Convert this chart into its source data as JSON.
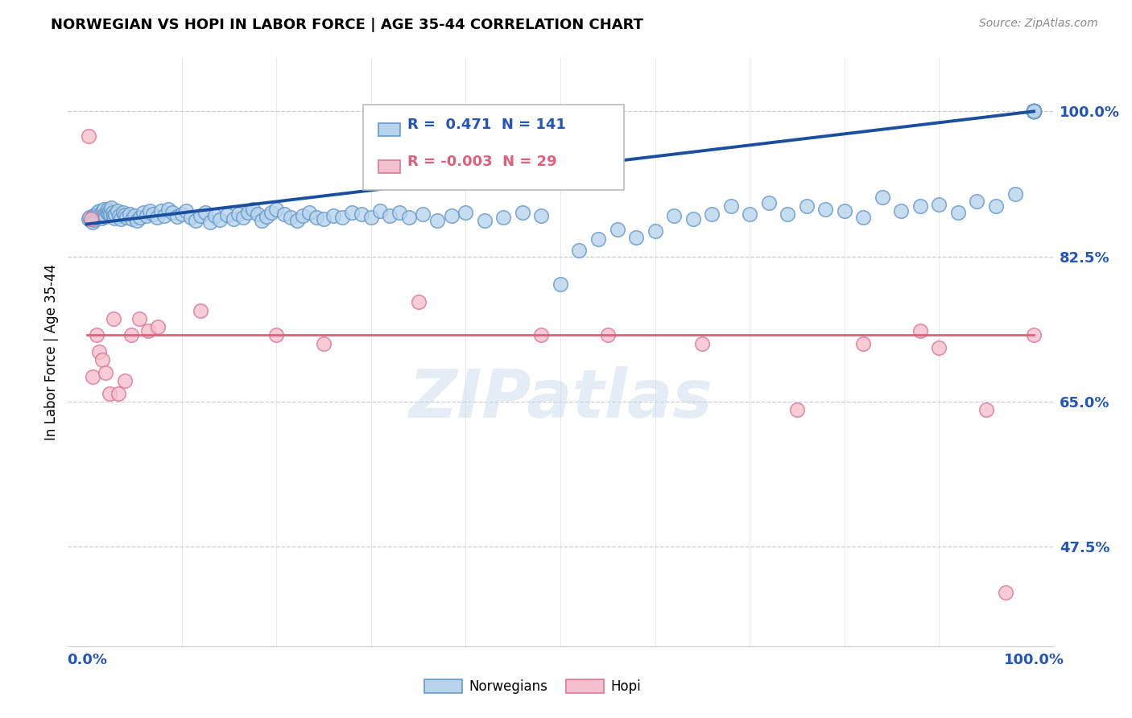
{
  "title": "NORWEGIAN VS HOPI IN LABOR FORCE | AGE 35-44 CORRELATION CHART",
  "source": "Source: ZipAtlas.com",
  "ylabel": "In Labor Force | Age 35-44",
  "watermark": "ZIPatlas",
  "xlim": [
    -0.02,
    1.02
  ],
  "ylim": [
    0.355,
    1.065
  ],
  "ytick_values": [
    0.475,
    0.65,
    0.825,
    1.0
  ],
  "norwegian_color": "#b8d4ec",
  "norwegian_edge": "#6699cc",
  "hopi_color": "#f5c0ce",
  "hopi_edge": "#dd7799",
  "trend_norwegian_color": "#1a4fa0",
  "trend_hopi_color": "#e0607a",
  "legend_R_norwegian": "0.471",
  "legend_N_norwegian": "141",
  "legend_R_hopi": "-0.003",
  "legend_N_hopi": "29",
  "norwegian_x": [
    0.002,
    0.003,
    0.004,
    0.005,
    0.006,
    0.007,
    0.008,
    0.009,
    0.01,
    0.011,
    0.012,
    0.013,
    0.014,
    0.015,
    0.016,
    0.017,
    0.018,
    0.019,
    0.02,
    0.021,
    0.022,
    0.023,
    0.024,
    0.025,
    0.026,
    0.027,
    0.028,
    0.029,
    0.03,
    0.032,
    0.034,
    0.036,
    0.038,
    0.04,
    0.042,
    0.045,
    0.048,
    0.05,
    0.053,
    0.056,
    0.06,
    0.063,
    0.066,
    0.07,
    0.074,
    0.078,
    0.082,
    0.086,
    0.09,
    0.095,
    0.1,
    0.105,
    0.11,
    0.115,
    0.12,
    0.125,
    0.13,
    0.135,
    0.14,
    0.148,
    0.155,
    0.16,
    0.165,
    0.17,
    0.175,
    0.18,
    0.185,
    0.19,
    0.195,
    0.2,
    0.208,
    0.215,
    0.222,
    0.228,
    0.235,
    0.242,
    0.25,
    0.26,
    0.27,
    0.28,
    0.29,
    0.3,
    0.31,
    0.32,
    0.33,
    0.34,
    0.355,
    0.37,
    0.385,
    0.4,
    0.42,
    0.44,
    0.46,
    0.48,
    0.5,
    0.52,
    0.54,
    0.56,
    0.58,
    0.6,
    0.62,
    0.64,
    0.66,
    0.68,
    0.7,
    0.72,
    0.74,
    0.76,
    0.78,
    0.8,
    0.82,
    0.84,
    0.86,
    0.88,
    0.9,
    0.92,
    0.94,
    0.96,
    0.98,
    1.0,
    1.0,
    1.0,
    1.0,
    1.0,
    1.0,
    1.0,
    1.0,
    1.0,
    1.0,
    1.0,
    1.0,
    1.0,
    1.0,
    1.0,
    1.0,
    1.0,
    1.0,
    1.0,
    1.0,
    1.0,
    1.0
  ],
  "norwegian_y": [
    0.87,
    0.872,
    0.868,
    0.871,
    0.866,
    0.874,
    0.869,
    0.875,
    0.872,
    0.878,
    0.873,
    0.88,
    0.876,
    0.871,
    0.879,
    0.874,
    0.882,
    0.876,
    0.873,
    0.878,
    0.882,
    0.877,
    0.88,
    0.876,
    0.884,
    0.878,
    0.874,
    0.871,
    0.876,
    0.88,
    0.874,
    0.87,
    0.878,
    0.875,
    0.872,
    0.876,
    0.87,
    0.874,
    0.868,
    0.872,
    0.878,
    0.874,
    0.88,
    0.876,
    0.872,
    0.88,
    0.874,
    0.882,
    0.878,
    0.873,
    0.876,
    0.88,
    0.872,
    0.868,
    0.874,
    0.878,
    0.866,
    0.874,
    0.869,
    0.875,
    0.87,
    0.876,
    0.872,
    0.878,
    0.882,
    0.876,
    0.868,
    0.873,
    0.878,
    0.882,
    0.876,
    0.872,
    0.868,
    0.874,
    0.878,
    0.872,
    0.87,
    0.874,
    0.872,
    0.878,
    0.876,
    0.872,
    0.88,
    0.874,
    0.878,
    0.872,
    0.876,
    0.868,
    0.874,
    0.878,
    0.868,
    0.872,
    0.878,
    0.874,
    0.792,
    0.832,
    0.846,
    0.858,
    0.848,
    0.856,
    0.874,
    0.87,
    0.876,
    0.886,
    0.876,
    0.89,
    0.876,
    0.886,
    0.882,
    0.88,
    0.872,
    0.896,
    0.88,
    0.886,
    0.888,
    0.878,
    0.892,
    0.886,
    0.9,
    1.0,
    1.0,
    1.0,
    1.0,
    1.0,
    1.0,
    1.0,
    1.0,
    1.0,
    1.0,
    1.0,
    1.0,
    1.0,
    1.0,
    1.0,
    1.0,
    1.0,
    1.0,
    1.0,
    1.0,
    1.0,
    1.0
  ],
  "hopi_x": [
    0.002,
    0.004,
    0.006,
    0.01,
    0.013,
    0.016,
    0.02,
    0.024,
    0.028,
    0.033,
    0.04,
    0.047,
    0.055,
    0.065,
    0.075,
    0.12,
    0.2,
    0.25,
    0.35,
    0.48,
    0.55,
    0.65,
    0.75,
    0.82,
    0.88,
    0.9,
    0.95,
    0.97,
    1.0
  ],
  "hopi_y": [
    0.97,
    0.87,
    0.68,
    0.73,
    0.71,
    0.7,
    0.685,
    0.66,
    0.75,
    0.66,
    0.675,
    0.73,
    0.75,
    0.735,
    0.74,
    0.76,
    0.73,
    0.72,
    0.77,
    0.73,
    0.73,
    0.72,
    0.64,
    0.72,
    0.735,
    0.715,
    0.64,
    0.42,
    0.73
  ],
  "trend_norwegian_start_y": 0.864,
  "trend_norwegian_end_y": 1.0,
  "trend_hopi_y": 0.73
}
